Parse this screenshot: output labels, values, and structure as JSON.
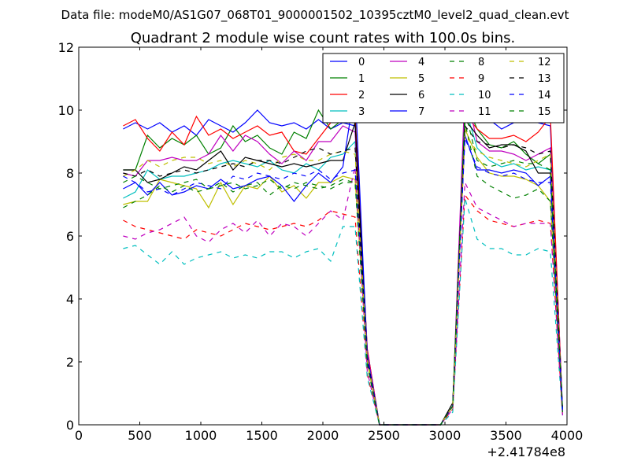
{
  "chart_data": {
    "type": "line",
    "suptitle": "Data file: modeM0/AS1G07_068T01_9000001502_10395cztM0_level2_quad_clean.evt",
    "title": "Quadrant 2 module wise count rates with 100.0s bins.",
    "xlabel": "",
    "ylabel": "",
    "x_offset_label": "+2.41784e8",
    "xlim": [
      0,
      4000
    ],
    "ylim": [
      0,
      12
    ],
    "xticks": [
      0,
      500,
      1000,
      1500,
      2000,
      2500,
      3000,
      3500,
      4000
    ],
    "yticks": [
      0,
      2,
      4,
      6,
      8,
      10,
      12
    ],
    "grid": false,
    "legend_position": "top-right",
    "x": [
      364,
      464,
      564,
      664,
      764,
      864,
      964,
      1064,
      1164,
      1264,
      1364,
      1464,
      1564,
      1664,
      1764,
      1864,
      1964,
      2064,
      2164,
      2264,
      2364,
      2464,
      2564,
      2664,
      2764,
      2864,
      2964,
      3064,
      3164,
      3264,
      3364,
      3464,
      3564,
      3664,
      3764,
      3864,
      3964
    ],
    "series": [
      {
        "name": "0",
        "color": "#0000ff",
        "dash": "solid",
        "values": [
          9.4,
          9.6,
          9.4,
          9.6,
          9.3,
          9.5,
          9.2,
          9.7,
          9.5,
          9.3,
          9.6,
          10.0,
          9.6,
          9.5,
          9.6,
          9.4,
          9.7,
          9.4,
          9.6,
          9.5,
          2.4,
          0.0,
          0.0,
          0.0,
          0.0,
          0.0,
          0.0,
          0.6,
          9.9,
          10.1,
          9.7,
          9.4,
          9.6,
          9.7,
          9.6,
          9.5,
          0.5
        ]
      },
      {
        "name": "1",
        "color": "#008000",
        "dash": "solid",
        "values": [
          8.1,
          8.1,
          9.2,
          8.8,
          9.1,
          8.9,
          9.2,
          8.6,
          8.8,
          9.5,
          9.0,
          9.2,
          8.8,
          8.6,
          9.3,
          9.1,
          10.0,
          9.4,
          9.7,
          9.9,
          2.3,
          0.0,
          0.0,
          0.0,
          0.0,
          0.0,
          0.0,
          0.6,
          10.3,
          9.4,
          8.9,
          8.8,
          9.0,
          8.6,
          8.3,
          8.6,
          0.4
        ]
      },
      {
        "name": "2",
        "color": "#ff0000",
        "dash": "solid",
        "values": [
          9.5,
          9.7,
          9.1,
          8.7,
          9.3,
          8.9,
          9.8,
          9.2,
          9.4,
          9.1,
          9.3,
          9.5,
          9.2,
          9.3,
          8.7,
          8.6,
          9.1,
          9.6,
          10.3,
          9.8,
          2.4,
          0.0,
          0.0,
          0.0,
          0.0,
          0.0,
          0.0,
          0.6,
          9.9,
          9.4,
          9.1,
          9.1,
          9.2,
          9.0,
          9.3,
          9.8,
          0.4
        ]
      },
      {
        "name": "3",
        "color": "#00bfbf",
        "dash": "solid",
        "values": [
          7.2,
          7.4,
          8.1,
          7.8,
          7.9,
          7.9,
          8.0,
          8.1,
          8.3,
          8.4,
          8.3,
          8.2,
          8.4,
          8.1,
          8.0,
          8.3,
          8.1,
          8.5,
          8.6,
          9.0,
          2.1,
          0.0,
          0.0,
          0.0,
          0.0,
          0.0,
          0.0,
          0.6,
          10.1,
          8.8,
          8.4,
          8.2,
          8.3,
          8.1,
          8.2,
          8.1,
          0.4
        ]
      },
      {
        "name": "4",
        "color": "#bf00bf",
        "dash": "solid",
        "values": [
          8.0,
          7.9,
          8.4,
          8.4,
          8.5,
          8.4,
          8.4,
          8.6,
          9.2,
          8.7,
          9.2,
          9.0,
          8.6,
          8.3,
          8.7,
          8.4,
          9.0,
          9.0,
          9.5,
          9.3,
          2.3,
          0.0,
          0.0,
          0.0,
          0.0,
          0.0,
          0.0,
          0.6,
          10.7,
          9.0,
          8.7,
          8.7,
          8.6,
          8.4,
          8.6,
          8.8,
          0.4
        ]
      },
      {
        "name": "5",
        "color": "#bfbf00",
        "dash": "solid",
        "values": [
          7.0,
          7.1,
          7.1,
          7.8,
          7.7,
          7.6,
          7.5,
          6.9,
          7.7,
          7.0,
          7.6,
          7.5,
          7.9,
          7.4,
          7.6,
          7.2,
          7.7,
          7.7,
          7.9,
          7.8,
          2.0,
          0.0,
          0.0,
          0.0,
          0.0,
          0.0,
          0.0,
          0.6,
          9.4,
          8.5,
          8.0,
          7.9,
          7.9,
          7.8,
          7.6,
          7.1,
          0.4
        ]
      },
      {
        "name": "6",
        "color": "#000000",
        "dash": "solid",
        "values": [
          8.1,
          8.1,
          7.7,
          7.8,
          8.0,
          8.2,
          8.1,
          8.4,
          8.7,
          8.1,
          8.5,
          8.4,
          8.3,
          8.2,
          8.3,
          8.2,
          8.3,
          8.4,
          8.4,
          9.6,
          2.1,
          0.0,
          0.0,
          0.0,
          0.0,
          0.0,
          0.0,
          0.7,
          9.7,
          9.2,
          8.8,
          8.9,
          8.9,
          8.7,
          8.0,
          8.0,
          0.4
        ]
      },
      {
        "name": "7",
        "color": "#0000ff",
        "dash": "solid",
        "values": [
          7.5,
          7.7,
          7.3,
          7.7,
          7.3,
          7.4,
          7.6,
          7.5,
          7.8,
          7.5,
          7.6,
          7.8,
          7.9,
          7.6,
          7.1,
          7.6,
          8.0,
          7.7,
          8.2,
          10.7,
          2.2,
          0.0,
          0.0,
          0.0,
          0.0,
          0.0,
          0.0,
          0.6,
          9.2,
          8.1,
          8.1,
          8.0,
          8.1,
          8.0,
          7.6,
          7.9,
          0.4
        ]
      },
      {
        "name": "8",
        "color": "#008000",
        "dash": "dashed",
        "values": [
          6.9,
          7.1,
          7.3,
          7.6,
          7.4,
          7.6,
          7.4,
          7.5,
          7.7,
          7.4,
          7.6,
          7.7,
          7.3,
          7.6,
          7.5,
          7.7,
          7.6,
          7.5,
          7.7,
          7.7,
          1.9,
          0.0,
          0.0,
          0.0,
          0.0,
          0.0,
          0.0,
          0.6,
          9.6,
          7.9,
          7.6,
          7.4,
          7.2,
          7.3,
          7.5,
          7.1,
          0.4
        ]
      },
      {
        "name": "9",
        "color": "#ff0000",
        "dash": "dashed",
        "values": [
          6.5,
          6.3,
          6.2,
          6.1,
          6.0,
          5.9,
          6.2,
          6.1,
          6.0,
          6.2,
          6.4,
          6.3,
          6.2,
          6.3,
          6.4,
          6.3,
          6.5,
          6.8,
          6.7,
          6.6,
          1.6,
          0.0,
          0.0,
          0.0,
          0.0,
          0.0,
          0.0,
          0.5,
          7.3,
          6.8,
          6.5,
          6.4,
          6.3,
          6.4,
          6.5,
          6.4,
          0.3
        ]
      },
      {
        "name": "10",
        "color": "#00bfbf",
        "dash": "dashed",
        "values": [
          5.6,
          5.7,
          5.4,
          5.1,
          5.5,
          5.1,
          5.3,
          5.4,
          5.5,
          5.3,
          5.4,
          5.3,
          5.5,
          5.5,
          5.3,
          5.5,
          5.6,
          5.2,
          6.3,
          6.3,
          1.5,
          0.0,
          0.0,
          0.0,
          0.0,
          0.0,
          0.0,
          0.4,
          7.2,
          5.9,
          5.6,
          5.6,
          5.4,
          5.4,
          5.6,
          5.5,
          0.3
        ]
      },
      {
        "name": "11",
        "color": "#bf00bf",
        "dash": "dashed",
        "values": [
          6.0,
          5.9,
          6.1,
          6.2,
          6.4,
          6.6,
          6.0,
          5.8,
          6.2,
          6.4,
          6.1,
          6.5,
          6.0,
          6.4,
          6.3,
          6.0,
          6.4,
          6.8,
          6.5,
          8.2,
          1.7,
          0.0,
          0.0,
          0.0,
          0.0,
          0.0,
          0.0,
          0.5,
          7.7,
          6.9,
          6.7,
          6.5,
          6.3,
          6.4,
          6.4,
          6.4,
          0.3
        ]
      },
      {
        "name": "12",
        "color": "#bfbf00",
        "dash": "dashed",
        "values": [
          7.9,
          8.1,
          8.4,
          8.2,
          8.4,
          8.5,
          8.5,
          8.3,
          8.4,
          8.2,
          8.4,
          8.3,
          8.1,
          8.5,
          8.6,
          8.4,
          8.4,
          8.6,
          8.7,
          8.6,
          2.1,
          0.0,
          0.0,
          0.0,
          0.0,
          0.0,
          0.0,
          0.6,
          9.2,
          8.7,
          8.5,
          8.4,
          8.3,
          8.2,
          8.4,
          8.6,
          0.4
        ]
      },
      {
        "name": "13",
        "color": "#000000",
        "dash": "dashed",
        "values": [
          8.0,
          7.9,
          8.1,
          7.9,
          8.0,
          8.1,
          8.0,
          8.1,
          8.2,
          8.3,
          8.2,
          8.4,
          8.4,
          8.3,
          8.5,
          8.7,
          8.8,
          8.6,
          8.7,
          8.8,
          2.1,
          0.0,
          0.0,
          0.0,
          0.0,
          0.0,
          0.0,
          0.6,
          9.5,
          9.0,
          8.9,
          8.8,
          8.9,
          8.8,
          8.6,
          8.7,
          0.4
        ]
      },
      {
        "name": "14",
        "color": "#0000ff",
        "dash": "dashed",
        "values": [
          7.9,
          7.7,
          7.4,
          7.5,
          7.3,
          7.5,
          7.7,
          7.6,
          7.5,
          7.9,
          7.8,
          8.0,
          7.9,
          7.8,
          8.0,
          7.9,
          8.1,
          7.8,
          8.0,
          8.1,
          2.0,
          0.0,
          0.0,
          0.0,
          0.0,
          0.0,
          0.0,
          0.6,
          9.1,
          8.2,
          8.0,
          7.9,
          8.0,
          7.8,
          7.7,
          7.7,
          0.4
        ]
      },
      {
        "name": "15",
        "color": "#008000",
        "dash": "dashed",
        "values": [
          7.7,
          7.9,
          7.7,
          7.5,
          7.6,
          7.7,
          7.8,
          7.5,
          7.6,
          7.7,
          7.5,
          7.6,
          7.8,
          7.5,
          7.7,
          7.6,
          7.5,
          7.6,
          7.8,
          7.7,
          1.9,
          0.0,
          0.0,
          0.0,
          0.0,
          0.0,
          0.0,
          0.6,
          10.0,
          8.4,
          8.2,
          8.3,
          8.4,
          8.3,
          8.3,
          8.1,
          0.4
        ]
      }
    ]
  }
}
